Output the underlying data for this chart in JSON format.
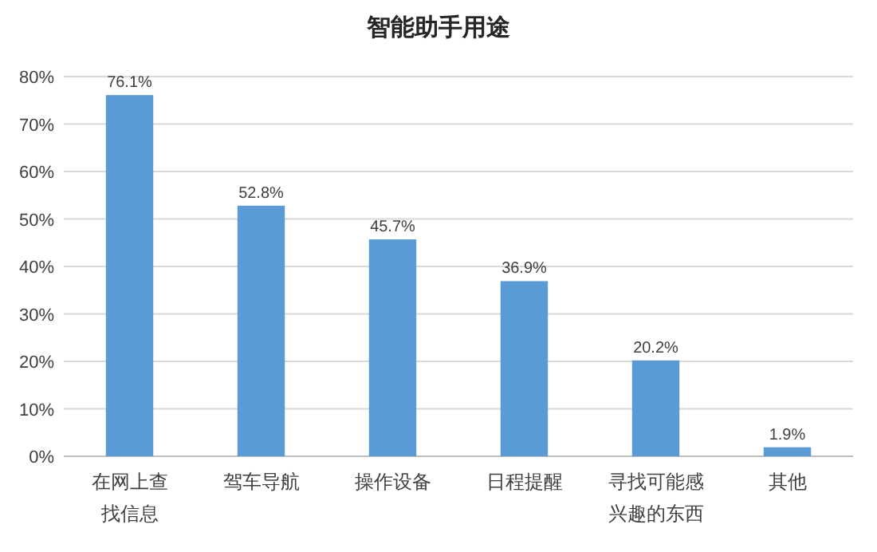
{
  "chart_data": {
    "type": "bar",
    "title": "智能助手用途",
    "categories": [
      "在网上查找信息",
      "驾车导航",
      "操作设备",
      "日程提醒",
      "寻找可能感兴趣的东西",
      "其他"
    ],
    "values": [
      76.1,
      52.8,
      45.7,
      36.9,
      20.2,
      1.9
    ],
    "value_labels": [
      "76.1%",
      "52.8%",
      "45.7%",
      "36.9%",
      "20.2%",
      "1.9%"
    ],
    "color": "#5b9bd5",
    "ylim": [
      0,
      80
    ],
    "yticks": [
      {
        "value": 0,
        "label": "0%"
      },
      {
        "value": 10,
        "label": "10%"
      },
      {
        "value": 20,
        "label": "20%"
      },
      {
        "value": 30,
        "label": "30%"
      },
      {
        "value": 40,
        "label": "40%"
      },
      {
        "value": 50,
        "label": "50%"
      },
      {
        "value": 60,
        "label": "60%"
      },
      {
        "value": 70,
        "label": "70%"
      },
      {
        "value": 80,
        "label": "80%"
      }
    ],
    "grid": "y"
  }
}
